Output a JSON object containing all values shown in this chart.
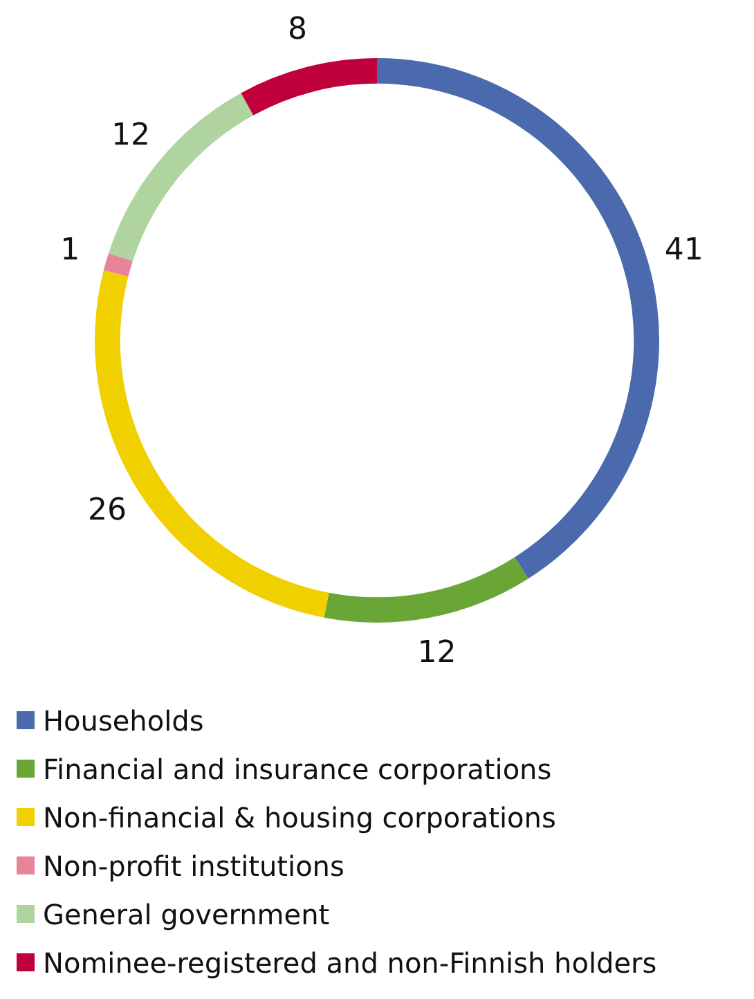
{
  "chart_data": {
    "type": "donut",
    "categories": [
      "Households",
      "Financial and insurance corporations",
      "Non-financial & housing corporations",
      "Non-profit institutions",
      "General government",
      "Nominee-registered and non-Finnish holders"
    ],
    "values": [
      41,
      12,
      26,
      1,
      12,
      8
    ],
    "colors": [
      "#4a6aad",
      "#6aa636",
      "#f0d000",
      "#e8849a",
      "#b0d4a0",
      "#c0003a"
    ],
    "data_labels": true,
    "legend": "bottom"
  }
}
